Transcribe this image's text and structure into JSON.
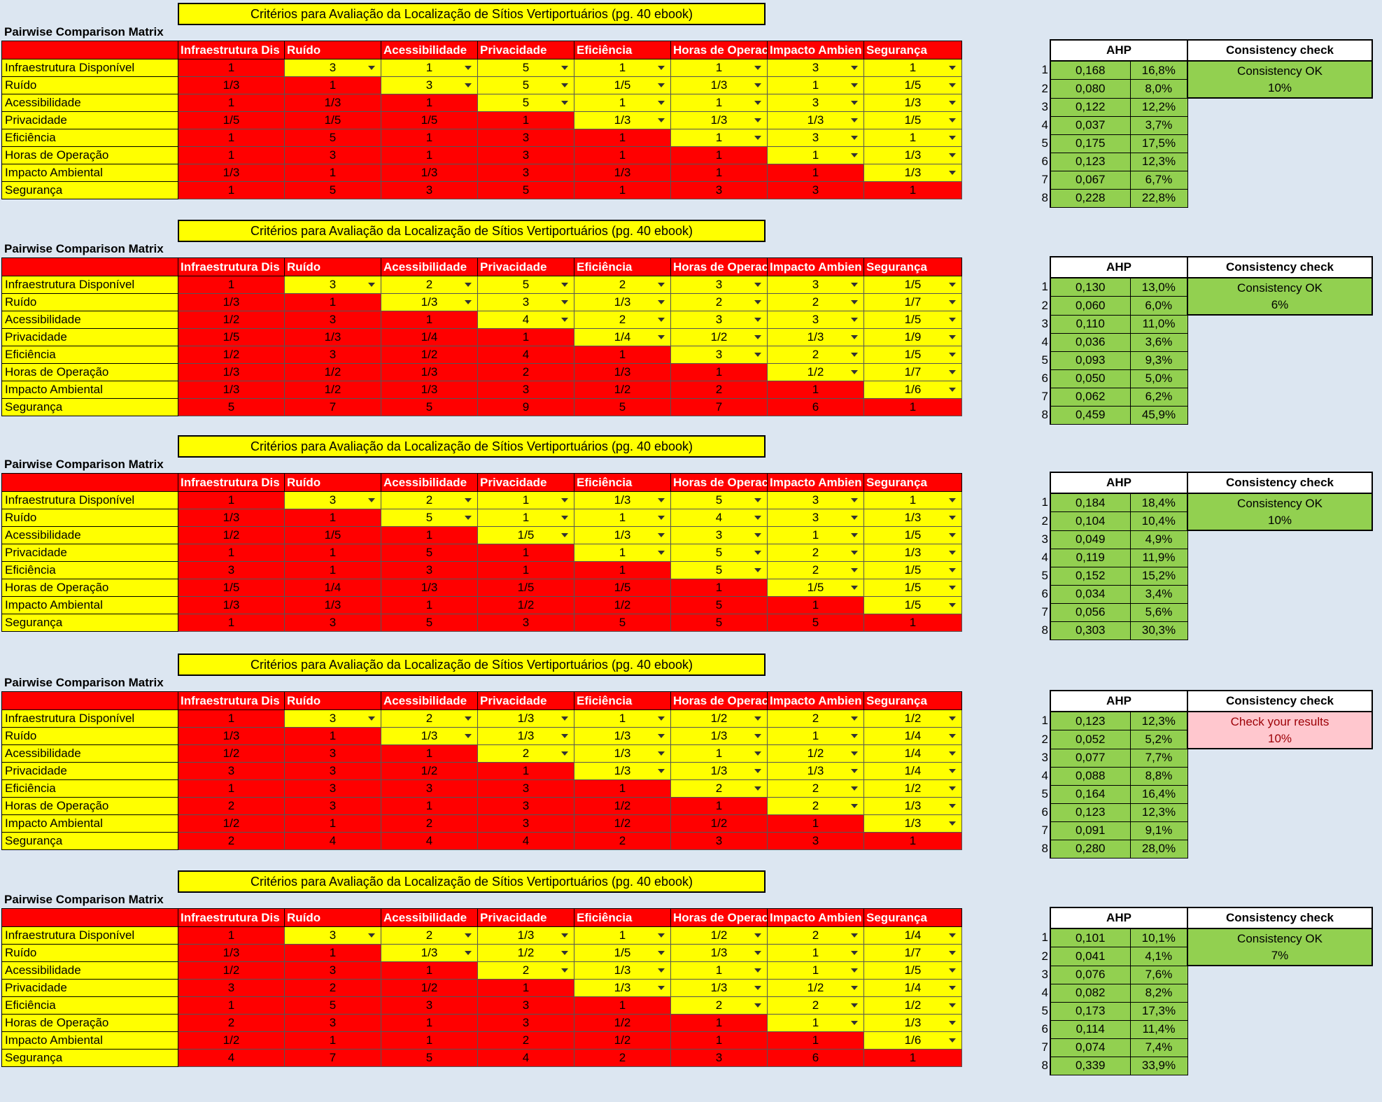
{
  "title": "Critérios para Avaliação da Localização de Sítios Vertiportuários (pg. 40 ebook)",
  "matrix_label": "Pairwise Comparison Matrix",
  "headers": [
    "Infraestrutura Dis",
    "Ruído",
    "Acessibilidade",
    "Privacidade",
    "Eficiência",
    "Horas de Operac",
    "Impacto Ambien",
    "Segurança"
  ],
  "row_labels": [
    "Infraestrutura Disponível",
    "Ruído",
    "Acessibilidade",
    "Privacidade",
    "Eficiência",
    "Horas de Operação",
    "Impacto Ambiental",
    "Segurança"
  ],
  "ahp_header": "AHP",
  "consistency_header": "Consistency check",
  "colors": {
    "red": "#ff0000",
    "yellow": "#ffff00",
    "green": "#92d050",
    "warn": "#ffc7ce"
  },
  "matrices": [
    {
      "rows": [
        [
          "1",
          "3",
          "1",
          "5",
          "1",
          "1",
          "3",
          "1"
        ],
        [
          "1/3",
          "1",
          "3",
          "5",
          "1/5",
          "1/3",
          "1",
          "1/5"
        ],
        [
          "1",
          "1/3",
          "1",
          "5",
          "1",
          "1",
          "3",
          "1/3"
        ],
        [
          "1/5",
          "1/5",
          "1/5",
          "1",
          "1/3",
          "1/3",
          "1/3",
          "1/5"
        ],
        [
          "1",
          "5",
          "1",
          "3",
          "1",
          "1",
          "3",
          "1"
        ],
        [
          "1",
          "3",
          "1",
          "3",
          "1",
          "1",
          "1",
          "1/3"
        ],
        [
          "1/3",
          "1",
          "1/3",
          "3",
          "1/3",
          "1",
          "1",
          "1/3"
        ],
        [
          "1",
          "5",
          "3",
          "5",
          "1",
          "3",
          "3",
          "1"
        ]
      ],
      "ahp": [
        [
          "0,168",
          "16,8%"
        ],
        [
          "0,080",
          "8,0%"
        ],
        [
          "0,122",
          "12,2%"
        ],
        [
          "0,037",
          "3,7%"
        ],
        [
          "0,175",
          "17,5%"
        ],
        [
          "0,123",
          "12,3%"
        ],
        [
          "0,067",
          "6,7%"
        ],
        [
          "0,228",
          "22,8%"
        ]
      ],
      "consistency": {
        "status": "Consistency OK",
        "ratio": "10%",
        "ok": true
      }
    },
    {
      "rows": [
        [
          "1",
          "3",
          "2",
          "5",
          "2",
          "3",
          "3",
          "1/5"
        ],
        [
          "1/3",
          "1",
          "1/3",
          "3",
          "1/3",
          "2",
          "2",
          "1/7"
        ],
        [
          "1/2",
          "3",
          "1",
          "4",
          "2",
          "3",
          "3",
          "1/5"
        ],
        [
          "1/5",
          "1/3",
          "1/4",
          "1",
          "1/4",
          "1/2",
          "1/3",
          "1/9"
        ],
        [
          "1/2",
          "3",
          "1/2",
          "4",
          "1",
          "3",
          "2",
          "1/5"
        ],
        [
          "1/3",
          "1/2",
          "1/3",
          "2",
          "1/3",
          "1",
          "1/2",
          "1/7"
        ],
        [
          "1/3",
          "1/2",
          "1/3",
          "3",
          "1/2",
          "2",
          "1",
          "1/6"
        ],
        [
          "5",
          "7",
          "5",
          "9",
          "5",
          "7",
          "6",
          "1"
        ]
      ],
      "ahp": [
        [
          "0,130",
          "13,0%"
        ],
        [
          "0,060",
          "6,0%"
        ],
        [
          "0,110",
          "11,0%"
        ],
        [
          "0,036",
          "3,6%"
        ],
        [
          "0,093",
          "9,3%"
        ],
        [
          "0,050",
          "5,0%"
        ],
        [
          "0,062",
          "6,2%"
        ],
        [
          "0,459",
          "45,9%"
        ]
      ],
      "consistency": {
        "status": "Consistency OK",
        "ratio": "6%",
        "ok": true
      }
    },
    {
      "rows": [
        [
          "1",
          "3",
          "2",
          "1",
          "1/3",
          "5",
          "3",
          "1"
        ],
        [
          "1/3",
          "1",
          "5",
          "1",
          "1",
          "4",
          "3",
          "1/3"
        ],
        [
          "1/2",
          "1/5",
          "1",
          "1/5",
          "1/3",
          "3",
          "1",
          "1/5"
        ],
        [
          "1",
          "1",
          "5",
          "1",
          "1",
          "5",
          "2",
          "1/3"
        ],
        [
          "3",
          "1",
          "3",
          "1",
          "1",
          "5",
          "2",
          "1/5"
        ],
        [
          "1/5",
          "1/4",
          "1/3",
          "1/5",
          "1/5",
          "1",
          "1/5",
          "1/5"
        ],
        [
          "1/3",
          "1/3",
          "1",
          "1/2",
          "1/2",
          "5",
          "1",
          "1/5"
        ],
        [
          "1",
          "3",
          "5",
          "3",
          "5",
          "5",
          "5",
          "1"
        ]
      ],
      "ahp": [
        [
          "0,184",
          "18,4%"
        ],
        [
          "0,104",
          "10,4%"
        ],
        [
          "0,049",
          "4,9%"
        ],
        [
          "0,119",
          "11,9%"
        ],
        [
          "0,152",
          "15,2%"
        ],
        [
          "0,034",
          "3,4%"
        ],
        [
          "0,056",
          "5,6%"
        ],
        [
          "0,303",
          "30,3%"
        ]
      ],
      "consistency": {
        "status": "Consistency OK",
        "ratio": "10%",
        "ok": true
      }
    },
    {
      "rows": [
        [
          "1",
          "3",
          "2",
          "1/3",
          "1",
          "1/2",
          "2",
          "1/2"
        ],
        [
          "1/3",
          "1",
          "1/3",
          "1/3",
          "1/3",
          "1/3",
          "1",
          "1/4"
        ],
        [
          "1/2",
          "3",
          "1",
          "2",
          "1/3",
          "1",
          "1/2",
          "1/4"
        ],
        [
          "3",
          "3",
          "1/2",
          "1",
          "1/3",
          "1/3",
          "1/3",
          "1/4"
        ],
        [
          "1",
          "3",
          "3",
          "3",
          "1",
          "2",
          "2",
          "1/2"
        ],
        [
          "2",
          "3",
          "1",
          "3",
          "1/2",
          "1",
          "2",
          "1/3"
        ],
        [
          "1/2",
          "1",
          "2",
          "3",
          "1/2",
          "1/2",
          "1",
          "1/3"
        ],
        [
          "2",
          "4",
          "4",
          "4",
          "2",
          "3",
          "3",
          "1"
        ]
      ],
      "ahp": [
        [
          "0,123",
          "12,3%"
        ],
        [
          "0,052",
          "5,2%"
        ],
        [
          "0,077",
          "7,7%"
        ],
        [
          "0,088",
          "8,8%"
        ],
        [
          "0,164",
          "16,4%"
        ],
        [
          "0,123",
          "12,3%"
        ],
        [
          "0,091",
          "9,1%"
        ],
        [
          "0,280",
          "28,0%"
        ]
      ],
      "consistency": {
        "status": "Check your results",
        "ratio": "10%",
        "ok": false
      }
    },
    {
      "rows": [
        [
          "1",
          "3",
          "2",
          "1/3",
          "1",
          "1/2",
          "2",
          "1/4"
        ],
        [
          "1/3",
          "1",
          "1/3",
          "1/2",
          "1/5",
          "1/3",
          "1",
          "1/7"
        ],
        [
          "1/2",
          "3",
          "1",
          "2",
          "1/3",
          "1",
          "1",
          "1/5"
        ],
        [
          "3",
          "2",
          "1/2",
          "1",
          "1/3",
          "1/3",
          "1/2",
          "1/4"
        ],
        [
          "1",
          "5",
          "3",
          "3",
          "1",
          "2",
          "2",
          "1/2"
        ],
        [
          "2",
          "3",
          "1",
          "3",
          "1/2",
          "1",
          "1",
          "1/3"
        ],
        [
          "1/2",
          "1",
          "1",
          "2",
          "1/2",
          "1",
          "1",
          "1/6"
        ],
        [
          "4",
          "7",
          "5",
          "4",
          "2",
          "3",
          "6",
          "1"
        ]
      ],
      "ahp": [
        [
          "0,101",
          "10,1%"
        ],
        [
          "0,041",
          "4,1%"
        ],
        [
          "0,076",
          "7,6%"
        ],
        [
          "0,082",
          "8,2%"
        ],
        [
          "0,173",
          "17,3%"
        ],
        [
          "0,114",
          "11,4%"
        ],
        [
          "0,074",
          "7,4%"
        ],
        [
          "0,339",
          "33,9%"
        ]
      ],
      "consistency": {
        "status": "Consistency OK",
        "ratio": "7%",
        "ok": true
      }
    }
  ]
}
